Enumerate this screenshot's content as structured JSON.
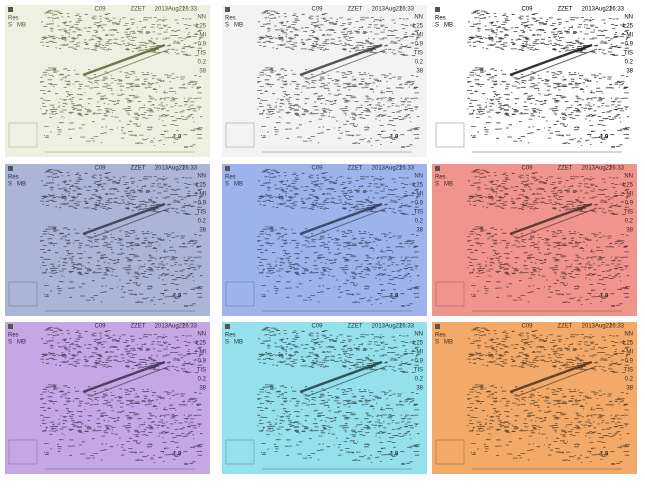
{
  "overlay": {
    "header": [
      "C09",
      "ZZET",
      "2013Aug22",
      "16:33"
    ],
    "left": [
      "Res",
      "S",
      "MB"
    ],
    "right": [
      "NN",
      "L25",
      "MI",
      "0.9",
      "TIS",
      "0.2",
      "38"
    ],
    "depth": "1.9"
  },
  "panels": [
    {
      "background": "#eef0e2",
      "ink": "#4f5a2a"
    },
    {
      "background": "#f3f3f3",
      "ink": "#2e2e2e"
    },
    {
      "background": "#ffffff",
      "ink": "#000000"
    },
    {
      "background": "#aab5d8",
      "ink": "#2b3040"
    },
    {
      "background": "#9eb3ec",
      "ink": "#26304a"
    },
    {
      "background": "#f0958d",
      "ink": "#3e2422"
    },
    {
      "background": "#c6a7e6",
      "ink": "#33283f"
    },
    {
      "background": "#94e0ec",
      "ink": "#1f3236"
    },
    {
      "background": "#f2a96a",
      "ink": "#3f2b18"
    }
  ]
}
